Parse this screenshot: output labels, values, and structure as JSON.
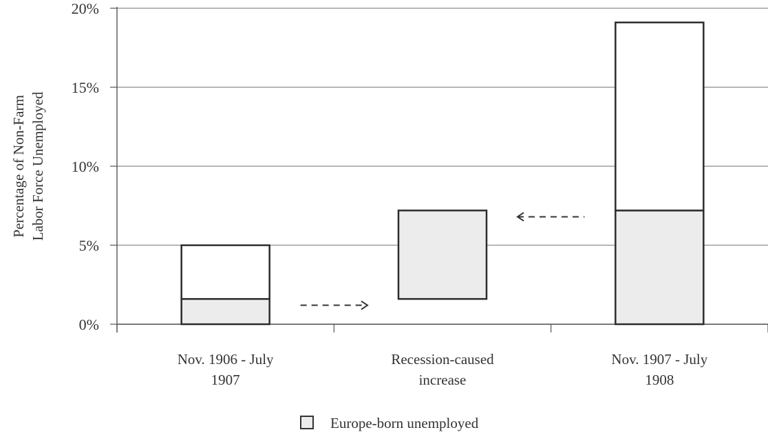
{
  "chart_data": {
    "type": "bar",
    "stacked": true,
    "categories": [
      [
        "Nov. 1906 - July",
        "1907"
      ],
      [
        "Recession-caused",
        "increase"
      ],
      [
        "Nov. 1907 - July",
        "1908"
      ]
    ],
    "bars": [
      {
        "base": 0,
        "segments": [
          {
            "series": "europe",
            "value": 1.6
          },
          {
            "series": "other",
            "value": 3.4
          }
        ]
      },
      {
        "base": 1.6,
        "segments": [
          {
            "series": "europe",
            "value": 5.6
          }
        ]
      },
      {
        "base": 0,
        "segments": [
          {
            "series": "europe",
            "value": 7.2
          },
          {
            "series": "other",
            "value": 11.9
          }
        ]
      }
    ],
    "series": [
      {
        "id": "europe",
        "name": "Europe-born unemployed",
        "color": "#ececec"
      },
      {
        "id": "other",
        "color": "#ffffff"
      }
    ],
    "ylabel_lines": [
      "Percentage of Non-Farm",
      "Labor Force Unemployed"
    ],
    "ylim": [
      0,
      20
    ],
    "yticks": [
      0,
      5,
      10,
      15,
      20
    ],
    "ytick_labels": [
      "0%",
      "5%",
      "10%",
      "15%",
      "20%"
    ],
    "grid": "horizontal",
    "annotations": [
      {
        "type": "dashed-arrow",
        "direction": "right",
        "between": [
          0,
          1
        ],
        "level": 1.2
      },
      {
        "type": "dashed-arrow",
        "direction": "left",
        "between": [
          1,
          2
        ],
        "level": 6.8
      }
    ],
    "legend": {
      "position": "bottom-center",
      "entries": [
        "Europe-born unemployed"
      ]
    }
  }
}
